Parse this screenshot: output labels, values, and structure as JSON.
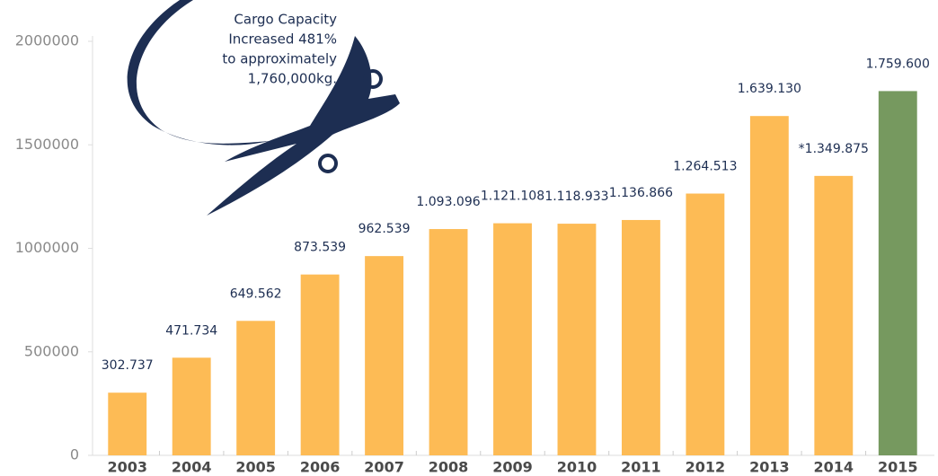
{
  "chart_data": {
    "type": "bar",
    "annotation": [
      "Cargo Capacity",
      "Increased 481%",
      "to approximately",
      "1,760,000kg."
    ],
    "categories": [
      "2003",
      "2004",
      "2005",
      "2006",
      "2007",
      "2008",
      "2009",
      "2010",
      "2011",
      "2012",
      "2013",
      "2014",
      "2015"
    ],
    "values": [
      302737,
      471734,
      649562,
      873539,
      962539,
      1093096,
      1121108,
      1118933,
      1136866,
      1264513,
      1639130,
      1349875,
      1759600
    ],
    "value_labels": [
      "302.737",
      "471.734",
      "649.562",
      "873.539",
      "962.539",
      "1.093.096",
      "1.121.108",
      "1.118.933",
      "1.136.866",
      "1.264.513",
      "1.639.130",
      "*1.349.875",
      "1.759.600"
    ],
    "colors": [
      "#fdbb55",
      "#fdbb55",
      "#fdbb55",
      "#fdbb55",
      "#fdbb55",
      "#fdbb55",
      "#fdbb55",
      "#fdbb55",
      "#fdbb55",
      "#fdbb55",
      "#fdbb55",
      "#fdbb55",
      "#76995f"
    ],
    "ylim": [
      0,
      2000000
    ],
    "yticks": [
      0,
      500000,
      1000000,
      1500000,
      2000000
    ]
  }
}
